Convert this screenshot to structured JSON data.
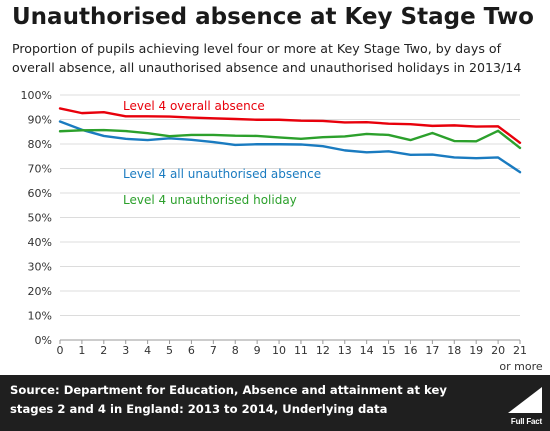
{
  "header": {
    "title": "Unauthorised absence at Key Stage Two",
    "subtitle": "Proportion of pupils achieving level four or more at Key Stage Two, by days of overall absence, all unauthorised absence and unauthorised holidays in 2013/14"
  },
  "footer": {
    "source": "Source: Department for Education, Absence and attainment at key stages 2 and 4 in England: 2013 to 2014, Underlying data",
    "logo_text": "Full Fact"
  },
  "colors": {
    "red": "#e8000b",
    "blue": "#1a7bc0",
    "green": "#2ca02c",
    "grid": "#dcdcdc",
    "footer_bg": "#1f1f1f"
  },
  "chart_data": {
    "type": "line",
    "x": [
      0,
      1,
      2,
      3,
      4,
      5,
      6,
      7,
      8,
      9,
      10,
      11,
      12,
      13,
      14,
      15,
      16,
      17,
      18,
      19,
      20,
      21
    ],
    "x_tick_labels": [
      "0",
      "1",
      "2",
      "3",
      "4",
      "5",
      "6",
      "7",
      "8",
      "9",
      "10",
      "11",
      "12",
      "13",
      "14",
      "15",
      "16",
      "17",
      "18",
      "19",
      "20",
      "21"
    ],
    "x_last_suffix": "or more",
    "ylim": [
      0,
      100
    ],
    "y_ticks": [
      0,
      10,
      20,
      30,
      40,
      50,
      60,
      70,
      80,
      90,
      100
    ],
    "y_tick_labels": [
      "0%",
      "10%",
      "20%",
      "30%",
      "40%",
      "50%",
      "60%",
      "70%",
      "80%",
      "90%",
      "100%"
    ],
    "grid": true,
    "series": [
      {
        "name": "Level 4 overall absence",
        "color": "#e8000b",
        "values": [
          94.5,
          92.6,
          93.0,
          91.3,
          91.3,
          91.2,
          90.8,
          90.5,
          90.2,
          89.9,
          89.9,
          89.5,
          89.4,
          88.8,
          88.9,
          88.3,
          88.1,
          87.4,
          87.6,
          87.1,
          87.2,
          80.5
        ]
      },
      {
        "name": "Level 4 all unauthorised absence",
        "color": "#1a7bc0",
        "values": [
          89.2,
          85.8,
          83.3,
          82.1,
          81.6,
          82.3,
          81.7,
          80.8,
          79.6,
          79.9,
          79.9,
          79.8,
          79.1,
          77.4,
          76.6,
          77.0,
          75.6,
          75.7,
          74.5,
          74.2,
          74.5,
          68.5
        ]
      },
      {
        "name": "Level 4 unauthorised holiday",
        "color": "#2ca02c",
        "values": [
          85.2,
          85.6,
          85.7,
          85.3,
          84.4,
          83.2,
          83.7,
          83.7,
          83.4,
          83.3,
          82.7,
          82.1,
          82.8,
          83.1,
          84.1,
          83.7,
          81.6,
          84.5,
          81.2,
          81.1,
          85.4,
          78.4
        ]
      }
    ]
  }
}
